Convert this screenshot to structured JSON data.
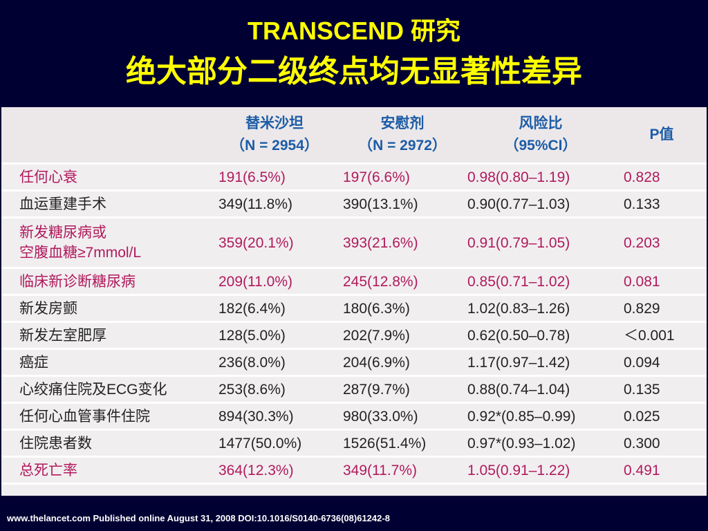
{
  "title": {
    "line1": "TRANSCEND 研究",
    "line2": "绝大部分二级终点均无显著性差异"
  },
  "table": {
    "headers": [
      {
        "label": "",
        "sub": ""
      },
      {
        "label": "替米沙坦",
        "sub": "（N = 2954）"
      },
      {
        "label": "安慰剂",
        "sub": "（N = 2972）"
      },
      {
        "label": "风险比",
        "sub": "（95%CI）"
      },
      {
        "label": "P值",
        "sub": ""
      }
    ],
    "rows": [
      {
        "cells": [
          "任何心衰",
          "191(6.5%)",
          "197(6.6%)",
          "0.98(0.80–1.19)",
          "0.828"
        ],
        "highlight": true
      },
      {
        "cells": [
          "血运重建手术",
          "349(11.8%)",
          "390(13.1%)",
          "0.90(0.77–1.03)",
          "0.133"
        ],
        "highlight": false
      },
      {
        "cells": [
          "新发糖尿病或\n空腹血糖≥7mmol/L",
          "359(20.1%)",
          "393(21.6%)",
          "0.91(0.79–1.05)",
          "0.203"
        ],
        "highlight": true
      },
      {
        "cells": [
          "临床新诊断糖尿病",
          "209(11.0%)",
          "245(12.8%)",
          "0.85(0.71–1.02)",
          "0.081"
        ],
        "highlight": true
      },
      {
        "cells": [
          "新发房颤",
          "182(6.4%)",
          "180(6.3%)",
          "1.02(0.83–1.26)",
          "0.829"
        ],
        "highlight": false
      },
      {
        "cells": [
          "新发左室肥厚",
          "128(5.0%)",
          "202(7.9%)",
          "0.62(0.50–0.78)",
          "＜0.001"
        ],
        "highlight": false
      },
      {
        "cells": [
          "癌症",
          "236(8.0%)",
          "204(6.9%)",
          "1.17(0.97–1.42)",
          "0.094"
        ],
        "highlight": false
      },
      {
        "cells": [
          "心绞痛住院及ECG变化",
          "253(8.6%)",
          "287(9.7%)",
          "0.88(0.74–1.04)",
          "0.135"
        ],
        "highlight": false
      },
      {
        "cells": [
          "任何心血管事件住院",
          "894(30.3%)",
          "980(33.0%)",
          "0.92*(0.85–0.99)",
          "0.025"
        ],
        "highlight": false
      },
      {
        "cells": [
          "住院患者数",
          "1477(50.0%)",
          "1526(51.4%)",
          "0.97*(0.93–1.02)",
          "0.300"
        ],
        "highlight": false
      },
      {
        "cells": [
          "总死亡率",
          "364(12.3%)",
          "349(11.7%)",
          "1.05(0.91–1.22)",
          "0.491"
        ],
        "highlight": true
      }
    ]
  },
  "footer": "www.thelancet.com Published online August 31, 2008 DOI:10.1016/S0140-6736(08)61242-8",
  "colors": {
    "background": "#000033",
    "title": "#ffff00",
    "header_text": "#1c5ca6",
    "highlight_text": "#b01a5c",
    "normal_text": "#222222"
  }
}
